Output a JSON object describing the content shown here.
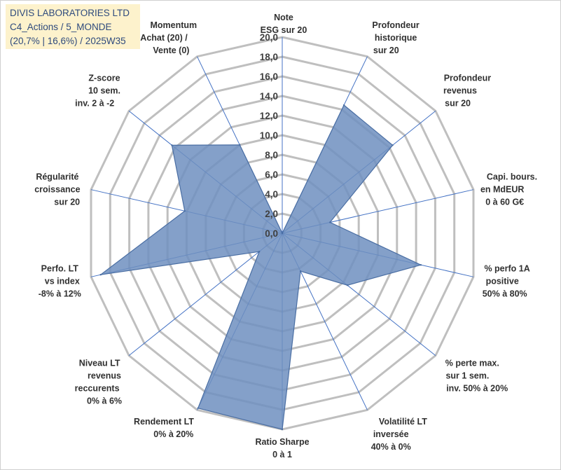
{
  "title_box": {
    "line1": "DIVIS LABORATORIES LTD",
    "line2": "C4_Actions / 5_MONDE",
    "line3": "(20,7% | 16,6%) / 2025W35"
  },
  "colors": {
    "fill": "#6f8fbf",
    "stroke": "#4a6ea3",
    "spoke": "#4472c4",
    "grid": "#bfbfbf",
    "title_bg": "#fdf2cc",
    "title_text": "#2e4a7d"
  },
  "chart_data": {
    "type": "radar",
    "rlim": [
      0,
      20
    ],
    "ticks": [
      "0,0",
      "2,0",
      "4,0",
      "6,0",
      "8,0",
      "10,0",
      "12,0",
      "14,0",
      "16,0",
      "18,0",
      "20,0"
    ],
    "categories": [
      [
        "Note",
        "ESG sur 20"
      ],
      [
        "Profondeur",
        "historique",
        "sur 20"
      ],
      [
        "Profondeur",
        "revenus",
        "sur 20"
      ],
      [
        "Capi. bours.",
        "en MdEUR",
        "0 à 60 G€"
      ],
      [
        "% perfo 1A",
        "positive",
        "50% à 80%"
      ],
      [
        "% perte max.",
        "sur 1 sem.",
        "inv. 50% à 20%"
      ],
      [
        "Volatilité LT",
        "inversée",
        "40% à 0%"
      ],
      [
        "Ratio Sharpe",
        "0 à 1"
      ],
      [
        "Rendement LT",
        "0% à 20%"
      ],
      [
        "Niveau LT",
        "revenus",
        "reccurents",
        "0% à 6%"
      ],
      [
        "Perfo. LT",
        "vs index",
        "-8% à 12%"
      ],
      [
        "Régularité",
        "croissance",
        "sur 20"
      ],
      [
        "Z-score",
        "10 sem.",
        "inv. 2 à -2"
      ],
      [
        "Momentum",
        "Achat (20) /",
        "Vente (0)"
      ]
    ],
    "series": [
      {
        "values": [
          0,
          14.5,
          14.4,
          5.0,
          14.5,
          8.5,
          4.3,
          20.0,
          19.8,
          3.0,
          19.0,
          10.2,
          14.4,
          10.0
        ]
      }
    ],
    "grid": true
  }
}
